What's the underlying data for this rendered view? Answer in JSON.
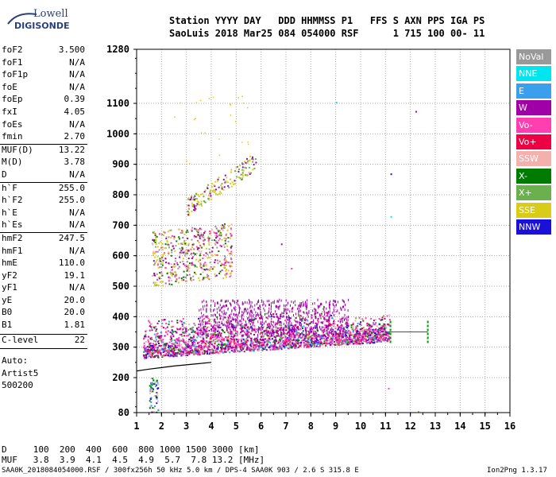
{
  "logo": {
    "line1": "Lowell",
    "line2": "DIGISONDE"
  },
  "header": {
    "labels": "Station YYYY DAY   DDD HHMMSS P1   FFS S AXN PPS IGA PS",
    "values": "SaoLuis 2018 Mar25 084 054000 RSF      1 715 100 00- 11"
  },
  "params_group1": [
    {
      "name": "foF2",
      "value": "3.500"
    },
    {
      "name": "foF1",
      "value": "N/A"
    },
    {
      "name": "foF1p",
      "value": "N/A"
    },
    {
      "name": "foE",
      "value": "N/A"
    },
    {
      "name": "foEp",
      "value": "0.39"
    },
    {
      "name": "fxI",
      "value": "4.05"
    },
    {
      "name": "foEs",
      "value": "N/A"
    },
    {
      "name": "fmin",
      "value": "2.70"
    }
  ],
  "params_group2": [
    {
      "name": "MUF(D)",
      "value": "13.22"
    },
    {
      "name": "M(D)",
      "value": "3.78"
    },
    {
      "name": "D",
      "value": "N/A"
    }
  ],
  "params_group3": [
    {
      "name": "h`F",
      "value": "255.0"
    },
    {
      "name": "h`F2",
      "value": "255.0"
    },
    {
      "name": "h`E",
      "value": "N/A"
    },
    {
      "name": "h`Es",
      "value": "N/A"
    }
  ],
  "params_group4": [
    {
      "name": "hmF2",
      "value": "247.5"
    },
    {
      "name": "hmF1",
      "value": "N/A"
    },
    {
      "name": "hmE",
      "value": "110.0"
    },
    {
      "name": "yF2",
      "value": "19.1"
    },
    {
      "name": "yF1",
      "value": "N/A"
    },
    {
      "name": "yE",
      "value": "20.0"
    },
    {
      "name": "B0",
      "value": "20.0"
    },
    {
      "name": "B1",
      "value": "1.81"
    }
  ],
  "params_group5": [
    {
      "name": "C-level",
      "value": "22"
    }
  ],
  "auto_label": "Auto:",
  "artist_label": "Artist5",
  "code_label": "500200",
  "legend": [
    {
      "label": "NoVal",
      "color": "#999999"
    },
    {
      "label": "NNE",
      "color": "#00e5ee"
    },
    {
      "label": "E",
      "color": "#3aa0ee"
    },
    {
      "label": "W",
      "color": "#a000a8"
    },
    {
      "label": "Vo-",
      "color": "#ff3eb0"
    },
    {
      "label": "Vo+",
      "color": "#ee0044"
    },
    {
      "label": "SSW",
      "color": "#f4b0ad"
    },
    {
      "label": "X-",
      "color": "#007a00"
    },
    {
      "label": "X+",
      "color": "#6ab04c"
    },
    {
      "label": "SSE",
      "color": "#d8cc18"
    },
    {
      "label": "NNW",
      "color": "#1a10d8"
    }
  ],
  "footer": {
    "d_row": "D     100  200  400  600  800 1000 1500 3000 [km]",
    "muf_row": "MUF   3.8  3.9  4.1  4.5  4.9  5.7  7.8 13.2 [MHz]",
    "file_row": "SAA0K_2018084054000.RSF / 300fx256h 50 kHz 5.0 km / DPS-4 SAA0K 903 / 2.6 S 315.8 E",
    "version": "Ion2Png 1.3.17"
  },
  "chart_data": {
    "type": "scatter",
    "title": "",
    "xlabel": "",
    "ylabel": "",
    "xlim": [
      1,
      16
    ],
    "ylim": [
      80,
      1280
    ],
    "x_ticks": [
      1,
      2,
      3,
      4,
      5,
      6,
      7,
      8,
      9,
      10,
      11,
      12,
      13,
      14,
      15,
      16
    ],
    "y_ticks": [
      80,
      200,
      300,
      400,
      500,
      600,
      700,
      800,
      900,
      1000,
      1100,
      1280
    ],
    "grid": true,
    "legend_position": "right",
    "series": [
      {
        "name": "Vo-",
        "region": "F2 trace",
        "x_range": [
          1.2,
          11.2
        ],
        "virtual_height_range": [
          240,
          440
        ]
      },
      {
        "name": "W",
        "region": "F2 trace",
        "x_range": [
          1.2,
          10.5
        ],
        "virtual_height_range": [
          260,
          460
        ]
      },
      {
        "name": "SSE",
        "region": "second-hop trace",
        "x_range": [
          1.5,
          4.6
        ],
        "virtual_height_range": [
          480,
          700
        ]
      },
      {
        "name": "SSE",
        "region": "third-hop trace",
        "x_range": [
          3.0,
          5.8
        ],
        "virtual_height_range": [
          750,
          930
        ]
      },
      {
        "name": "X-",
        "region": "low-frequency echoes",
        "x_range": [
          1.5,
          2.0
        ],
        "virtual_height_range": [
          80,
          560
        ]
      }
    ],
    "model_profile": {
      "x": [
        1.0,
        1.5,
        2.0,
        2.5,
        3.0,
        3.5,
        4.0
      ],
      "y": [
        222,
        228,
        233,
        238,
        242,
        246,
        250
      ]
    },
    "cutoff_markers": [
      {
        "x": 11.2,
        "y": 350
      },
      {
        "x": 12.7,
        "y": 350
      }
    ]
  }
}
